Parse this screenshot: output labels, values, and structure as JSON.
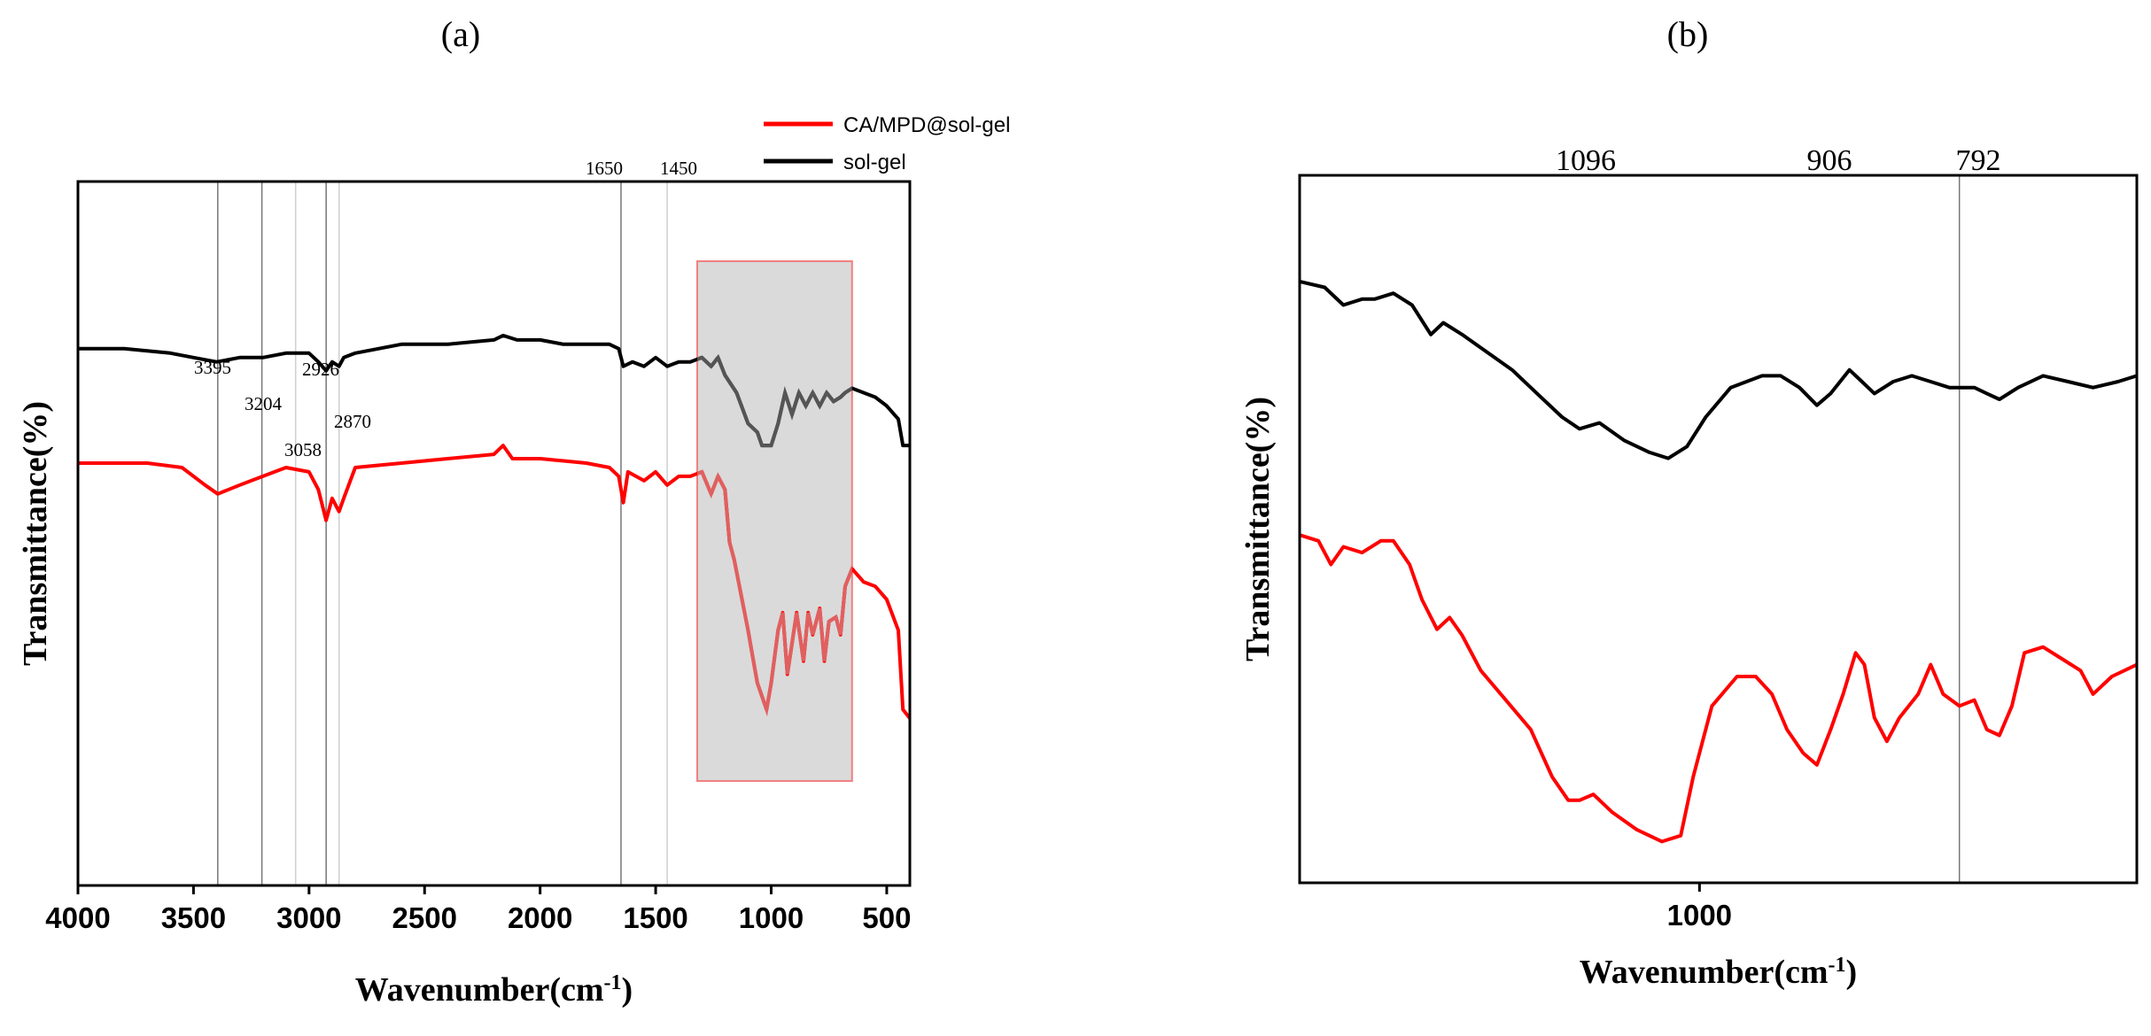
{
  "chart_data": [
    {
      "panel": "(a)",
      "type": "line",
      "xlabel": "Wavenumber(cm",
      "xlabel_sup": "-1",
      "xlabel_close": ")",
      "ylabel": "Transmittance(%)",
      "xlim": [
        4000,
        400
      ],
      "x_reversed": true,
      "xticks": [
        "4000",
        "3500",
        "3000",
        "2500",
        "2000",
        "1500",
        "1000",
        "500"
      ],
      "xtick_values": [
        4000,
        3500,
        3000,
        2500,
        2000,
        1500,
        1000,
        500
      ],
      "yticks_shown": false,
      "legend": {
        "position": "top-right",
        "entries": [
          {
            "label": "CA/MPD@sol-gel",
            "color": "#ff0000"
          },
          {
            "label": "sol-gel",
            "color": "#000000"
          }
        ]
      },
      "vlines": [
        3395,
        3204,
        3058,
        2926,
        2870,
        1650,
        1450
      ],
      "peak_labels": [
        {
          "text": "3395",
          "x": 3395
        },
        {
          "text": "3204",
          "x": 3204
        },
        {
          "text": "3058",
          "x": 3058
        },
        {
          "text": "2926",
          "x": 2926
        },
        {
          "text": "2870",
          "x": 2870
        },
        {
          "text": "1650",
          "x": 1650
        },
        {
          "text": "1450",
          "x": 1450
        }
      ],
      "highlight_range": [
        1320,
        650
      ],
      "series": [
        {
          "name": "sol-gel",
          "color": "#000000",
          "points": [
            [
              4000,
              62
            ],
            [
              3800,
              62
            ],
            [
              3600,
              61
            ],
            [
              3500,
              60
            ],
            [
              3400,
              59
            ],
            [
              3300,
              60
            ],
            [
              3200,
              60
            ],
            [
              3100,
              61
            ],
            [
              3000,
              61
            ],
            [
              2960,
              59
            ],
            [
              2926,
              57
            ],
            [
              2900,
              59
            ],
            [
              2870,
              58
            ],
            [
              2850,
              60
            ],
            [
              2800,
              61
            ],
            [
              2600,
              63
            ],
            [
              2400,
              63
            ],
            [
              2200,
              64
            ],
            [
              2160,
              65
            ],
            [
              2100,
              64
            ],
            [
              2000,
              64
            ],
            [
              1900,
              63
            ],
            [
              1800,
              63
            ],
            [
              1700,
              63
            ],
            [
              1660,
              62
            ],
            [
              1640,
              58
            ],
            [
              1600,
              59
            ],
            [
              1550,
              58
            ],
            [
              1500,
              60
            ],
            [
              1450,
              58
            ],
            [
              1400,
              59
            ],
            [
              1350,
              59
            ],
            [
              1300,
              60
            ],
            [
              1260,
              58
            ],
            [
              1230,
              60
            ],
            [
              1200,
              56
            ],
            [
              1150,
              52
            ],
            [
              1100,
              45
            ],
            [
              1060,
              43
            ],
            [
              1040,
              40
            ],
            [
              1000,
              40
            ],
            [
              970,
              45
            ],
            [
              940,
              52
            ],
            [
              910,
              47
            ],
            [
              880,
              52
            ],
            [
              850,
              49
            ],
            [
              820,
              52
            ],
            [
              790,
              49
            ],
            [
              760,
              52
            ],
            [
              730,
              50
            ],
            [
              700,
              51
            ],
            [
              680,
              52
            ],
            [
              650,
              53
            ],
            [
              600,
              52
            ],
            [
              550,
              51
            ],
            [
              500,
              49
            ],
            [
              450,
              46
            ],
            [
              430,
              40
            ],
            [
              400,
              40
            ]
          ]
        },
        {
          "name": "CA/MPD@sol-gel",
          "color": "#ff0000",
          "points": [
            [
              4000,
              36
            ],
            [
              3700,
              36
            ],
            [
              3550,
              35
            ],
            [
              3450,
              31
            ],
            [
              3395,
              29
            ],
            [
              3300,
              31
            ],
            [
              3200,
              33
            ],
            [
              3100,
              35
            ],
            [
              3000,
              34
            ],
            [
              2960,
              30
            ],
            [
              2926,
              23
            ],
            [
              2900,
              28
            ],
            [
              2870,
              25
            ],
            [
              2850,
              28
            ],
            [
              2800,
              35
            ],
            [
              2600,
              36
            ],
            [
              2400,
              37
            ],
            [
              2200,
              38
            ],
            [
              2160,
              40
            ],
            [
              2120,
              37
            ],
            [
              2000,
              37
            ],
            [
              1800,
              36
            ],
            [
              1700,
              35
            ],
            [
              1660,
              33
            ],
            [
              1640,
              27
            ],
            [
              1620,
              34
            ],
            [
              1550,
              32
            ],
            [
              1500,
              34
            ],
            [
              1450,
              31
            ],
            [
              1400,
              33
            ],
            [
              1350,
              33
            ],
            [
              1300,
              34
            ],
            [
              1260,
              29
            ],
            [
              1230,
              33
            ],
            [
              1200,
              30
            ],
            [
              1180,
              18
            ],
            [
              1160,
              14
            ],
            [
              1130,
              6
            ],
            [
              1100,
              -2
            ],
            [
              1080,
              -8
            ],
            [
              1060,
              -14
            ],
            [
              1040,
              -17
            ],
            [
              1020,
              -20
            ],
            [
              1000,
              -14
            ],
            [
              970,
              -2
            ],
            [
              950,
              2
            ],
            [
              930,
              -12
            ],
            [
              910,
              -5
            ],
            [
              890,
              2
            ],
            [
              860,
              -9
            ],
            [
              840,
              2
            ],
            [
              820,
              -3
            ],
            [
              790,
              3
            ],
            [
              770,
              -9
            ],
            [
              750,
              0
            ],
            [
              720,
              1
            ],
            [
              700,
              -3
            ],
            [
              680,
              8
            ],
            [
              650,
              12
            ],
            [
              600,
              9
            ],
            [
              550,
              8
            ],
            [
              500,
              5
            ],
            [
              450,
              -2
            ],
            [
              430,
              -20
            ],
            [
              400,
              -22
            ]
          ]
        }
      ]
    },
    {
      "panel": "(b)",
      "type": "line",
      "xlabel": "Wavenumber(cm",
      "xlabel_sup": "-1",
      "xlabel_close": ")",
      "ylabel": "Transmittance(%)",
      "xlim": [
        1320,
        650
      ],
      "x_reversed": true,
      "xticks": [
        "1000"
      ],
      "xtick_values": [
        1000
      ],
      "yticks_shown": false,
      "vlines": [
        792
      ],
      "peak_labels": [
        {
          "text": "1096",
          "x": 1096
        },
        {
          "text": "906",
          "x": 906
        },
        {
          "text": "792",
          "x": 792
        }
      ],
      "series": [
        {
          "name": "sol-gel",
          "color": "#000000",
          "points": [
            [
              1320,
              92
            ],
            [
              1300,
              91
            ],
            [
              1285,
              88
            ],
            [
              1270,
              89
            ],
            [
              1260,
              89
            ],
            [
              1245,
              90
            ],
            [
              1230,
              88
            ],
            [
              1215,
              83
            ],
            [
              1205,
              85
            ],
            [
              1190,
              83
            ],
            [
              1170,
              80
            ],
            [
              1150,
              77
            ],
            [
              1130,
              73
            ],
            [
              1110,
              69
            ],
            [
              1096,
              67
            ],
            [
              1080,
              68
            ],
            [
              1060,
              65
            ],
            [
              1040,
              63
            ],
            [
              1025,
              62
            ],
            [
              1010,
              64
            ],
            [
              995,
              69
            ],
            [
              975,
              74
            ],
            [
              950,
              76
            ],
            [
              935,
              76
            ],
            [
              920,
              74
            ],
            [
              906,
              71
            ],
            [
              895,
              73
            ],
            [
              880,
              77
            ],
            [
              870,
              75
            ],
            [
              860,
              73
            ],
            [
              845,
              75
            ],
            [
              830,
              76
            ],
            [
              815,
              75
            ],
            [
              800,
              74
            ],
            [
              792,
              74
            ],
            [
              780,
              74
            ],
            [
              770,
              73
            ],
            [
              760,
              72
            ],
            [
              745,
              74
            ],
            [
              725,
              76
            ],
            [
              705,
              75
            ],
            [
              685,
              74
            ],
            [
              665,
              75
            ],
            [
              650,
              76
            ]
          ]
        },
        {
          "name": "CA/MPD@sol-gel",
          "color": "#ff0000",
          "points": [
            [
              1320,
              49
            ],
            [
              1305,
              48
            ],
            [
              1295,
              44
            ],
            [
              1285,
              47
            ],
            [
              1270,
              46
            ],
            [
              1255,
              48
            ],
            [
              1245,
              48
            ],
            [
              1232,
              44
            ],
            [
              1222,
              38
            ],
            [
              1210,
              33
            ],
            [
              1200,
              35
            ],
            [
              1190,
              32
            ],
            [
              1175,
              26
            ],
            [
              1155,
              21
            ],
            [
              1135,
              16
            ],
            [
              1118,
              8
            ],
            [
              1105,
              4
            ],
            [
              1096,
              4
            ],
            [
              1085,
              5
            ],
            [
              1070,
              2
            ],
            [
              1050,
              -1
            ],
            [
              1030,
              -3
            ],
            [
              1015,
              -2
            ],
            [
              1005,
              8
            ],
            [
              990,
              20
            ],
            [
              970,
              25
            ],
            [
              955,
              25
            ],
            [
              942,
              22
            ],
            [
              930,
              16
            ],
            [
              917,
              12
            ],
            [
              906,
              10
            ],
            [
              895,
              16
            ],
            [
              885,
              22
            ],
            [
              875,
              29
            ],
            [
              868,
              27
            ],
            [
              860,
              18
            ],
            [
              850,
              14
            ],
            [
              840,
              18
            ],
            [
              825,
              22
            ],
            [
              815,
              27
            ],
            [
              805,
              22
            ],
            [
              792,
              20
            ],
            [
              780,
              21
            ],
            [
              770,
              16
            ],
            [
              760,
              15
            ],
            [
              750,
              20
            ],
            [
              740,
              29
            ],
            [
              725,
              30
            ],
            [
              710,
              28
            ],
            [
              695,
              26
            ],
            [
              685,
              22
            ],
            [
              670,
              25
            ],
            [
              650,
              27
            ]
          ]
        }
      ]
    }
  ]
}
